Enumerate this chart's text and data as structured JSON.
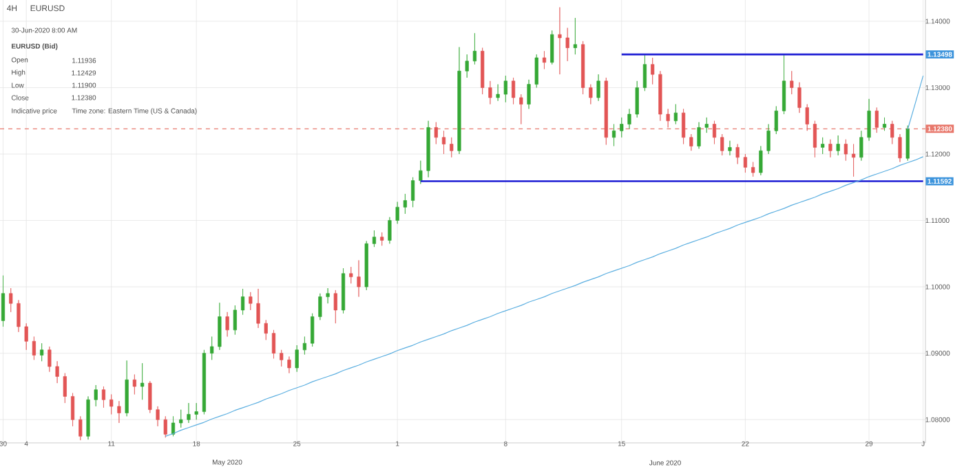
{
  "chart_data": {
    "type": "candlestick",
    "title": "4H",
    "subtitle": "EURUSD",
    "categories": [
      "30",
      null,
      null,
      "4",
      null,
      null,
      null,
      null,
      null,
      null,
      null,
      null,
      null,
      null,
      "11",
      null,
      null,
      null,
      null,
      null,
      null,
      null,
      null,
      null,
      null,
      "18",
      null,
      null,
      null,
      null,
      null,
      null,
      null,
      null,
      null,
      null,
      null,
      null,
      "25",
      null,
      null,
      null,
      null,
      null,
      null,
      null,
      null,
      null,
      null,
      null,
      null,
      "1",
      null,
      null,
      null,
      null,
      null,
      null,
      null,
      null,
      null,
      null,
      null,
      null,
      null,
      "8",
      null,
      null,
      null,
      null,
      null,
      null,
      null,
      null,
      null,
      null,
      null,
      null,
      null,
      null,
      "15",
      null,
      null,
      null,
      null,
      null,
      null,
      null,
      null,
      null,
      null,
      null,
      null,
      null,
      null,
      null,
      "22",
      null,
      null,
      null,
      null,
      null,
      null,
      null,
      null,
      null,
      null,
      null,
      null,
      null,
      null,
      null,
      "29",
      null,
      null,
      null,
      null,
      null,
      null,
      "J"
    ],
    "colors": [
      "#35a835",
      "#e25555",
      "#e25555",
      "#e25555",
      "#e25555",
      "#35a835",
      "#e25555",
      "#e25555",
      "#e25555",
      "#e25555",
      "#e25555",
      "#35a835",
      "#35a835",
      "#e25555",
      "#e25555",
      "#e25555",
      "#35a835",
      "#e25555",
      "#35a835",
      "#e25555",
      "#e25555",
      "#e25555",
      "#35a835",
      "#35a835",
      "#35a835",
      "#35a835",
      "#35a835",
      "#35a835",
      "#35a835",
      "#e25555",
      "#35a835",
      "#35a835",
      "#e25555",
      "#e25555",
      "#e25555",
      "#e25555",
      "#e25555",
      "#e25555",
      "#35a835",
      "#35a835",
      "#35a835",
      "#35a835",
      "#35a835",
      "#e25555",
      "#35a835",
      "#e25555",
      "#e25555",
      "#35a835",
      "#35a835",
      "#e25555",
      "#35a835",
      "#35a835",
      "#35a835",
      "#35a835",
      "#35a835",
      "#35a835",
      "#e25555",
      "#e25555",
      "#e25555",
      "#35a835",
      "#35a835",
      "#35a835",
      "#e25555",
      "#e25555",
      "#35a835",
      "#35a835",
      "#e25555",
      "#e25555",
      "#35a835",
      "#35a835",
      "#e25555",
      "#35a835",
      "#e25555",
      "#e25555",
      "#35a835",
      "#e25555",
      "#e25555",
      "#35a835",
      "#e25555",
      "#35a835",
      "#35a835",
      "#35a835",
      "#35a835",
      "#35a835",
      "#e25555",
      "#e25555",
      "#e25555",
      "#35a835",
      "#e25555",
      "#e25555",
      "#35a835",
      "#35a835",
      "#e25555",
      "#e25555",
      "#35a835",
      "#e25555",
      "#e25555",
      "#e25555",
      "#35a835",
      "#35a835",
      "#35a835",
      "#35a835",
      "#e25555",
      "#e25555",
      "#e25555",
      "#e25555",
      "#35a835",
      "#e25555",
      "#35a835",
      "#e25555",
      "#e25555",
      "#35a835",
      "#35a835",
      "#e25555",
      "#35a835",
      "#e25555",
      "#e25555",
      "#35a835",
      null,
      null
    ],
    "ohlc": [
      [
        1.0949,
        1.1017,
        1.094,
        1.099
      ],
      [
        1.099,
        1.0998,
        1.0962,
        1.0975
      ],
      [
        1.0975,
        1.098,
        1.0932,
        1.094
      ],
      [
        1.094,
        1.0945,
        1.0905,
        1.0918
      ],
      [
        1.0918,
        1.0925,
        1.089,
        1.0897
      ],
      [
        1.0897,
        1.0915,
        1.0888,
        1.0905
      ],
      [
        1.0905,
        1.091,
        1.0872,
        1.088
      ],
      [
        1.088,
        1.0888,
        1.0855,
        1.0865
      ],
      [
        1.0865,
        1.087,
        1.0825,
        1.0835
      ],
      [
        1.0835,
        1.084,
        1.079,
        1.08
      ],
      [
        1.08,
        1.0805,
        1.0769,
        1.0775
      ],
      [
        1.0775,
        1.0835,
        1.077,
        1.083
      ],
      [
        1.083,
        1.0852,
        1.082,
        1.0845
      ],
      [
        1.0845,
        1.085,
        1.0818,
        1.083
      ],
      [
        1.083,
        1.0838,
        1.0808,
        1.082
      ],
      [
        1.082,
        1.0828,
        1.0795,
        1.081
      ],
      [
        1.081,
        1.0889,
        1.0805,
        1.086
      ],
      [
        1.086,
        1.0868,
        1.0838,
        1.085
      ],
      [
        1.085,
        1.0885,
        1.083,
        1.0855
      ],
      [
        1.0855,
        1.0858,
        1.081,
        1.0815
      ],
      [
        1.0815,
        1.082,
        1.079,
        1.08
      ],
      [
        1.08,
        1.0805,
        1.0773,
        1.0778
      ],
      [
        1.0778,
        1.0805,
        1.0775,
        1.0795
      ],
      [
        1.0795,
        1.0815,
        1.0788,
        1.08
      ],
      [
        1.08,
        1.0825,
        1.0795,
        1.0808
      ],
      [
        1.0808,
        1.0825,
        1.08,
        1.0812
      ],
      [
        1.0812,
        1.0905,
        1.0808,
        1.09
      ],
      [
        1.09,
        1.0925,
        1.089,
        1.091
      ],
      [
        1.091,
        1.0976,
        1.0905,
        1.0955
      ],
      [
        1.0955,
        1.0962,
        1.0925,
        1.0935
      ],
      [
        1.0935,
        1.0972,
        1.0928,
        1.0965
      ],
      [
        1.0965,
        1.0997,
        1.0958,
        1.0985
      ],
      [
        1.0985,
        1.0992,
        1.0965,
        1.0975
      ],
      [
        1.0975,
        1.0997,
        1.0938,
        1.0945
      ],
      [
        1.0945,
        1.095,
        1.092,
        1.093
      ],
      [
        1.093,
        1.0935,
        1.0892,
        1.09
      ],
      [
        1.09,
        1.0905,
        1.088,
        1.089
      ],
      [
        1.089,
        1.0895,
        1.087,
        1.0878
      ],
      [
        1.0878,
        1.0912,
        1.0872,
        1.0905
      ],
      [
        1.0905,
        1.0925,
        1.0898,
        1.0915
      ],
      [
        1.0915,
        1.096,
        1.091,
        1.0955
      ],
      [
        1.0955,
        1.099,
        1.095,
        1.0985
      ],
      [
        1.0985,
        1.0998,
        1.0975,
        1.099
      ],
      [
        1.099,
        1.0995,
        1.0945,
        1.0965
      ],
      [
        1.0965,
        1.1028,
        1.096,
        1.102
      ],
      [
        1.102,
        1.103,
        1.1005,
        1.1015
      ],
      [
        1.1015,
        1.104,
        1.0985,
        1.1
      ],
      [
        1.1,
        1.1069,
        1.0995,
        1.1065
      ],
      [
        1.1065,
        1.1085,
        1.106,
        1.1075
      ],
      [
        1.1075,
        1.1082,
        1.1062,
        1.107
      ],
      [
        1.107,
        1.1105,
        1.1065,
        1.11
      ],
      [
        1.11,
        1.1128,
        1.1095,
        1.112
      ],
      [
        1.112,
        1.114,
        1.111,
        1.113
      ],
      [
        1.113,
        1.1165,
        1.112,
        1.116
      ],
      [
        1.116,
        1.119,
        1.1155,
        1.1175
      ],
      [
        1.1175,
        1.125,
        1.1165,
        1.124
      ],
      [
        1.124,
        1.1248,
        1.1215,
        1.1225
      ],
      [
        1.1225,
        1.1235,
        1.12,
        1.1215
      ],
      [
        1.1215,
        1.1225,
        1.1195,
        1.1205
      ],
      [
        1.1205,
        1.1361,
        1.12,
        1.1325
      ],
      [
        1.1325,
        1.135,
        1.1315,
        1.134
      ],
      [
        1.134,
        1.1382,
        1.1335,
        1.1355
      ],
      [
        1.1355,
        1.136,
        1.129,
        1.13
      ],
      [
        1.13,
        1.131,
        1.1275,
        1.1285
      ],
      [
        1.1285,
        1.1305,
        1.128,
        1.129
      ],
      [
        1.129,
        1.1318,
        1.1278,
        1.131
      ],
      [
        1.131,
        1.1315,
        1.1275,
        1.1285
      ],
      [
        1.1285,
        1.129,
        1.1245,
        1.1275
      ],
      [
        1.1275,
        1.1312,
        1.1268,
        1.1305
      ],
      [
        1.1305,
        1.135,
        1.13,
        1.1345
      ],
      [
        1.1345,
        1.1355,
        1.1328,
        1.1338
      ],
      [
        1.1338,
        1.1386,
        1.1335,
        1.138
      ],
      [
        1.138,
        1.1421,
        1.132,
        1.1375
      ],
      [
        1.1375,
        1.139,
        1.134,
        1.136
      ],
      [
        1.136,
        1.1405,
        1.135,
        1.1365
      ],
      [
        1.1365,
        1.137,
        1.129,
        1.13
      ],
      [
        1.13,
        1.1305,
        1.1275,
        1.1285
      ],
      [
        1.1285,
        1.132,
        1.128,
        1.131
      ],
      [
        1.131,
        1.1315,
        1.1214,
        1.1225
      ],
      [
        1.1225,
        1.1245,
        1.1212,
        1.1235
      ],
      [
        1.1235,
        1.1255,
        1.1225,
        1.1245
      ],
      [
        1.1245,
        1.1268,
        1.1238,
        1.126
      ],
      [
        1.126,
        1.131,
        1.1255,
        1.13
      ],
      [
        1.13,
        1.1349,
        1.1295,
        1.1335
      ],
      [
        1.1335,
        1.1345,
        1.1305,
        1.132
      ],
      [
        1.132,
        1.1325,
        1.125,
        1.126
      ],
      [
        1.126,
        1.1268,
        1.124,
        1.125
      ],
      [
        1.125,
        1.1275,
        1.1245,
        1.1262
      ],
      [
        1.1262,
        1.1268,
        1.1215,
        1.1225
      ],
      [
        1.1225,
        1.123,
        1.1205,
        1.1212
      ],
      [
        1.1212,
        1.1248,
        1.1208,
        1.124
      ],
      [
        1.124,
        1.1255,
        1.1232,
        1.1245
      ],
      [
        1.1245,
        1.125,
        1.1215,
        1.1225
      ],
      [
        1.1225,
        1.123,
        1.1198,
        1.1205
      ],
      [
        1.1205,
        1.122,
        1.1198,
        1.121
      ],
      [
        1.121,
        1.1215,
        1.1185,
        1.1195
      ],
      [
        1.1195,
        1.12,
        1.1172,
        1.118
      ],
      [
        1.118,
        1.1188,
        1.1166,
        1.1172
      ],
      [
        1.1172,
        1.1212,
        1.1168,
        1.1205
      ],
      [
        1.1205,
        1.1245,
        1.12,
        1.1235
      ],
      [
        1.1235,
        1.1272,
        1.123,
        1.1265
      ],
      [
        1.1265,
        1.1349,
        1.126,
        1.131
      ],
      [
        1.131,
        1.1325,
        1.129,
        1.13
      ],
      [
        1.13,
        1.1308,
        1.1262,
        1.127
      ],
      [
        1.127,
        1.1275,
        1.1235,
        1.1245
      ],
      [
        1.1245,
        1.125,
        1.1195,
        1.121
      ],
      [
        1.121,
        1.1225,
        1.12,
        1.1215
      ],
      [
        1.1215,
        1.1222,
        1.1195,
        1.1205
      ],
      [
        1.1205,
        1.1228,
        1.1198,
        1.1215
      ],
      [
        1.1215,
        1.1222,
        1.119,
        1.12
      ],
      [
        1.12,
        1.1215,
        1.1166,
        1.1195
      ],
      [
        1.1195,
        1.1235,
        1.119,
        1.1225
      ],
      [
        1.1225,
        1.1283,
        1.122,
        1.1265
      ],
      [
        1.1265,
        1.127,
        1.1232,
        1.124
      ],
      [
        1.124,
        1.1255,
        1.1235,
        1.1245
      ],
      [
        1.1245,
        1.125,
        1.1215,
        1.1225
      ],
      [
        1.1225,
        1.123,
        1.1188,
        1.1194
      ],
      [
        1.11936,
        1.12429,
        1.119,
        1.1238
      ],
      null,
      null
    ],
    "series": [
      {
        "type": "line",
        "color": "#1c1cd4",
        "values": [
          null,
          null,
          null,
          null,
          null,
          null,
          null,
          null,
          null,
          null,
          null,
          null,
          null,
          null,
          null,
          null,
          null,
          null,
          null,
          null,
          null,
          null,
          null,
          null,
          null,
          null,
          null,
          null,
          null,
          null,
          null,
          null,
          null,
          null,
          null,
          null,
          null,
          null,
          null,
          null,
          null,
          null,
          null,
          null,
          null,
          null,
          null,
          null,
          null,
          null,
          null,
          null,
          null,
          null,
          1.1159,
          1.1159,
          1.1159,
          1.1159,
          1.1159,
          1.1159,
          1.1159,
          1.1159,
          1.1159,
          1.1159,
          1.1159,
          1.1159,
          1.1159,
          1.1159,
          1.1159,
          1.1159,
          1.1159,
          1.1159,
          1.1159,
          1.1159,
          1.1159,
          1.1159,
          1.1159,
          1.1159,
          1.1159,
          1.1159,
          1.1159,
          1.1159,
          1.1159,
          1.1159,
          1.1159,
          1.1159,
          1.1159,
          1.1159,
          1.1159,
          1.1159,
          1.1159,
          1.1159,
          1.1159,
          1.1159,
          1.1159,
          1.1159,
          1.1159,
          1.1159,
          1.1159,
          1.1159,
          1.1159,
          1.1159,
          1.1159,
          1.1159,
          1.1159,
          1.1159,
          1.1159,
          1.1159,
          1.1159,
          1.1159,
          1.1159,
          1.1159,
          1.1159,
          1.1159,
          1.1159,
          1.1159,
          1.1159,
          1.1159,
          1.1159,
          1.1159
        ]
      },
      {
        "type": "line",
        "color": "#1c1cd4",
        "values": [
          null,
          null,
          null,
          null,
          null,
          null,
          null,
          null,
          null,
          null,
          null,
          null,
          null,
          null,
          null,
          null,
          null,
          null,
          null,
          null,
          null,
          null,
          null,
          null,
          null,
          null,
          null,
          null,
          null,
          null,
          null,
          null,
          null,
          null,
          null,
          null,
          null,
          null,
          null,
          null,
          null,
          null,
          null,
          null,
          null,
          null,
          null,
          null,
          null,
          null,
          null,
          null,
          null,
          null,
          null,
          null,
          null,
          null,
          null,
          null,
          null,
          null,
          null,
          null,
          null,
          null,
          null,
          null,
          null,
          null,
          null,
          null,
          null,
          null,
          null,
          null,
          null,
          null,
          null,
          null,
          1.135,
          1.135,
          1.135,
          1.135,
          1.135,
          1.135,
          1.135,
          1.135,
          1.135,
          1.135,
          1.135,
          1.135,
          1.135,
          1.135,
          1.135,
          1.135,
          1.135,
          1.135,
          1.135,
          1.135,
          1.135,
          1.135,
          1.135,
          1.135,
          1.135,
          1.135,
          1.135,
          1.135,
          1.135,
          1.135,
          1.135,
          1.135,
          1.135,
          1.135,
          1.135,
          1.135,
          1.135,
          1.135,
          1.135,
          1.135
        ]
      },
      {
        "type": "line",
        "color": "#5aaee0",
        "values": [
          null,
          null,
          null,
          null,
          null,
          null,
          null,
          null,
          null,
          null,
          null,
          null,
          null,
          null,
          null,
          null,
          null,
          null,
          null,
          null,
          null,
          1.0775,
          1.0779,
          1.0784,
          1.0788,
          1.0792,
          1.0796,
          1.0801,
          1.0805,
          1.0809,
          1.0814,
          1.0818,
          1.0822,
          1.0826,
          1.0831,
          1.0835,
          1.0839,
          1.0844,
          1.0848,
          1.0852,
          1.0857,
          1.0861,
          1.0865,
          1.0869,
          1.0874,
          1.0878,
          1.0882,
          1.0887,
          1.0891,
          1.0895,
          1.0899,
          1.0904,
          1.0908,
          1.0912,
          1.0917,
          1.0921,
          1.0925,
          1.0929,
          1.0934,
          1.0938,
          1.0942,
          1.0947,
          1.0951,
          1.0955,
          1.096,
          1.0964,
          1.0968,
          1.0972,
          1.0977,
          1.0981,
          1.0985,
          1.099,
          1.0994,
          1.0998,
          1.1002,
          1.1007,
          1.1011,
          1.1015,
          1.102,
          1.1024,
          1.1028,
          1.1032,
          1.1037,
          1.1041,
          1.1045,
          1.105,
          1.1054,
          1.1058,
          1.1063,
          1.1067,
          1.1071,
          1.1075,
          1.108,
          1.1084,
          1.1088,
          1.1093,
          1.1097,
          1.1101,
          1.1105,
          1.111,
          1.1114,
          1.1118,
          1.1123,
          1.1127,
          1.1131,
          1.1135,
          1.114,
          1.1144,
          1.1148,
          1.1153,
          1.1157,
          1.1161,
          1.1166,
          1.117,
          1.1174,
          1.1178,
          1.1183,
          1.1187,
          1.1191,
          1.1196
        ]
      },
      {
        "type": "line",
        "color": "#5aaee0",
        "values": [
          null,
          null,
          null,
          null,
          null,
          null,
          null,
          null,
          null,
          null,
          null,
          null,
          null,
          null,
          null,
          null,
          null,
          null,
          null,
          null,
          null,
          null,
          null,
          null,
          null,
          null,
          null,
          null,
          null,
          null,
          null,
          null,
          null,
          null,
          null,
          null,
          null,
          null,
          null,
          null,
          null,
          null,
          null,
          null,
          null,
          null,
          null,
          null,
          null,
          null,
          null,
          null,
          null,
          null,
          null,
          null,
          null,
          null,
          null,
          null,
          null,
          null,
          null,
          null,
          null,
          null,
          null,
          null,
          null,
          null,
          null,
          null,
          null,
          null,
          null,
          null,
          null,
          null,
          null,
          null,
          null,
          null,
          null,
          null,
          null,
          null,
          null,
          null,
          null,
          null,
          null,
          null,
          null,
          null,
          null,
          null,
          null,
          null,
          null,
          null,
          null,
          null,
          null,
          null,
          null,
          null,
          null,
          null,
          null,
          null,
          null,
          null,
          null,
          null,
          null,
          null,
          null,
          1.1237,
          1.1277,
          1.1318
        ]
      }
    ],
    "ylim": [
      1.0765,
      1.1432
    ],
    "yticks": [
      {
        "value": 1.08,
        "label": "1.08000"
      },
      {
        "value": 1.09,
        "label": "1.09000"
      },
      {
        "value": 1.1,
        "label": "1.10000"
      },
      {
        "value": 1.11,
        "label": "1.11000"
      },
      {
        "value": 1.12,
        "label": "1.12000"
      },
      {
        "value": 1.13,
        "label": "1.13000"
      },
      {
        "value": 1.14,
        "label": "1.14000"
      }
    ],
    "grid": true,
    "ref_lines": [
      {
        "axis": "y",
        "value": 1.1238,
        "label": "1.12380",
        "color": "#e8776b",
        "line_style": "dashed"
      }
    ],
    "annotations": [
      "30-Jun-2020 8:00 AM",
      "EURUSD (Bid)",
      "Open",
      "1.11936",
      "High",
      "1.12429",
      "Low",
      "1.11900",
      "Close",
      "1.12380",
      "Indicative price",
      "Time zone: Eastern Time (US & Canada)",
      "May 2020",
      "June 2020",
      "1.13498",
      "1.11592"
    ]
  }
}
